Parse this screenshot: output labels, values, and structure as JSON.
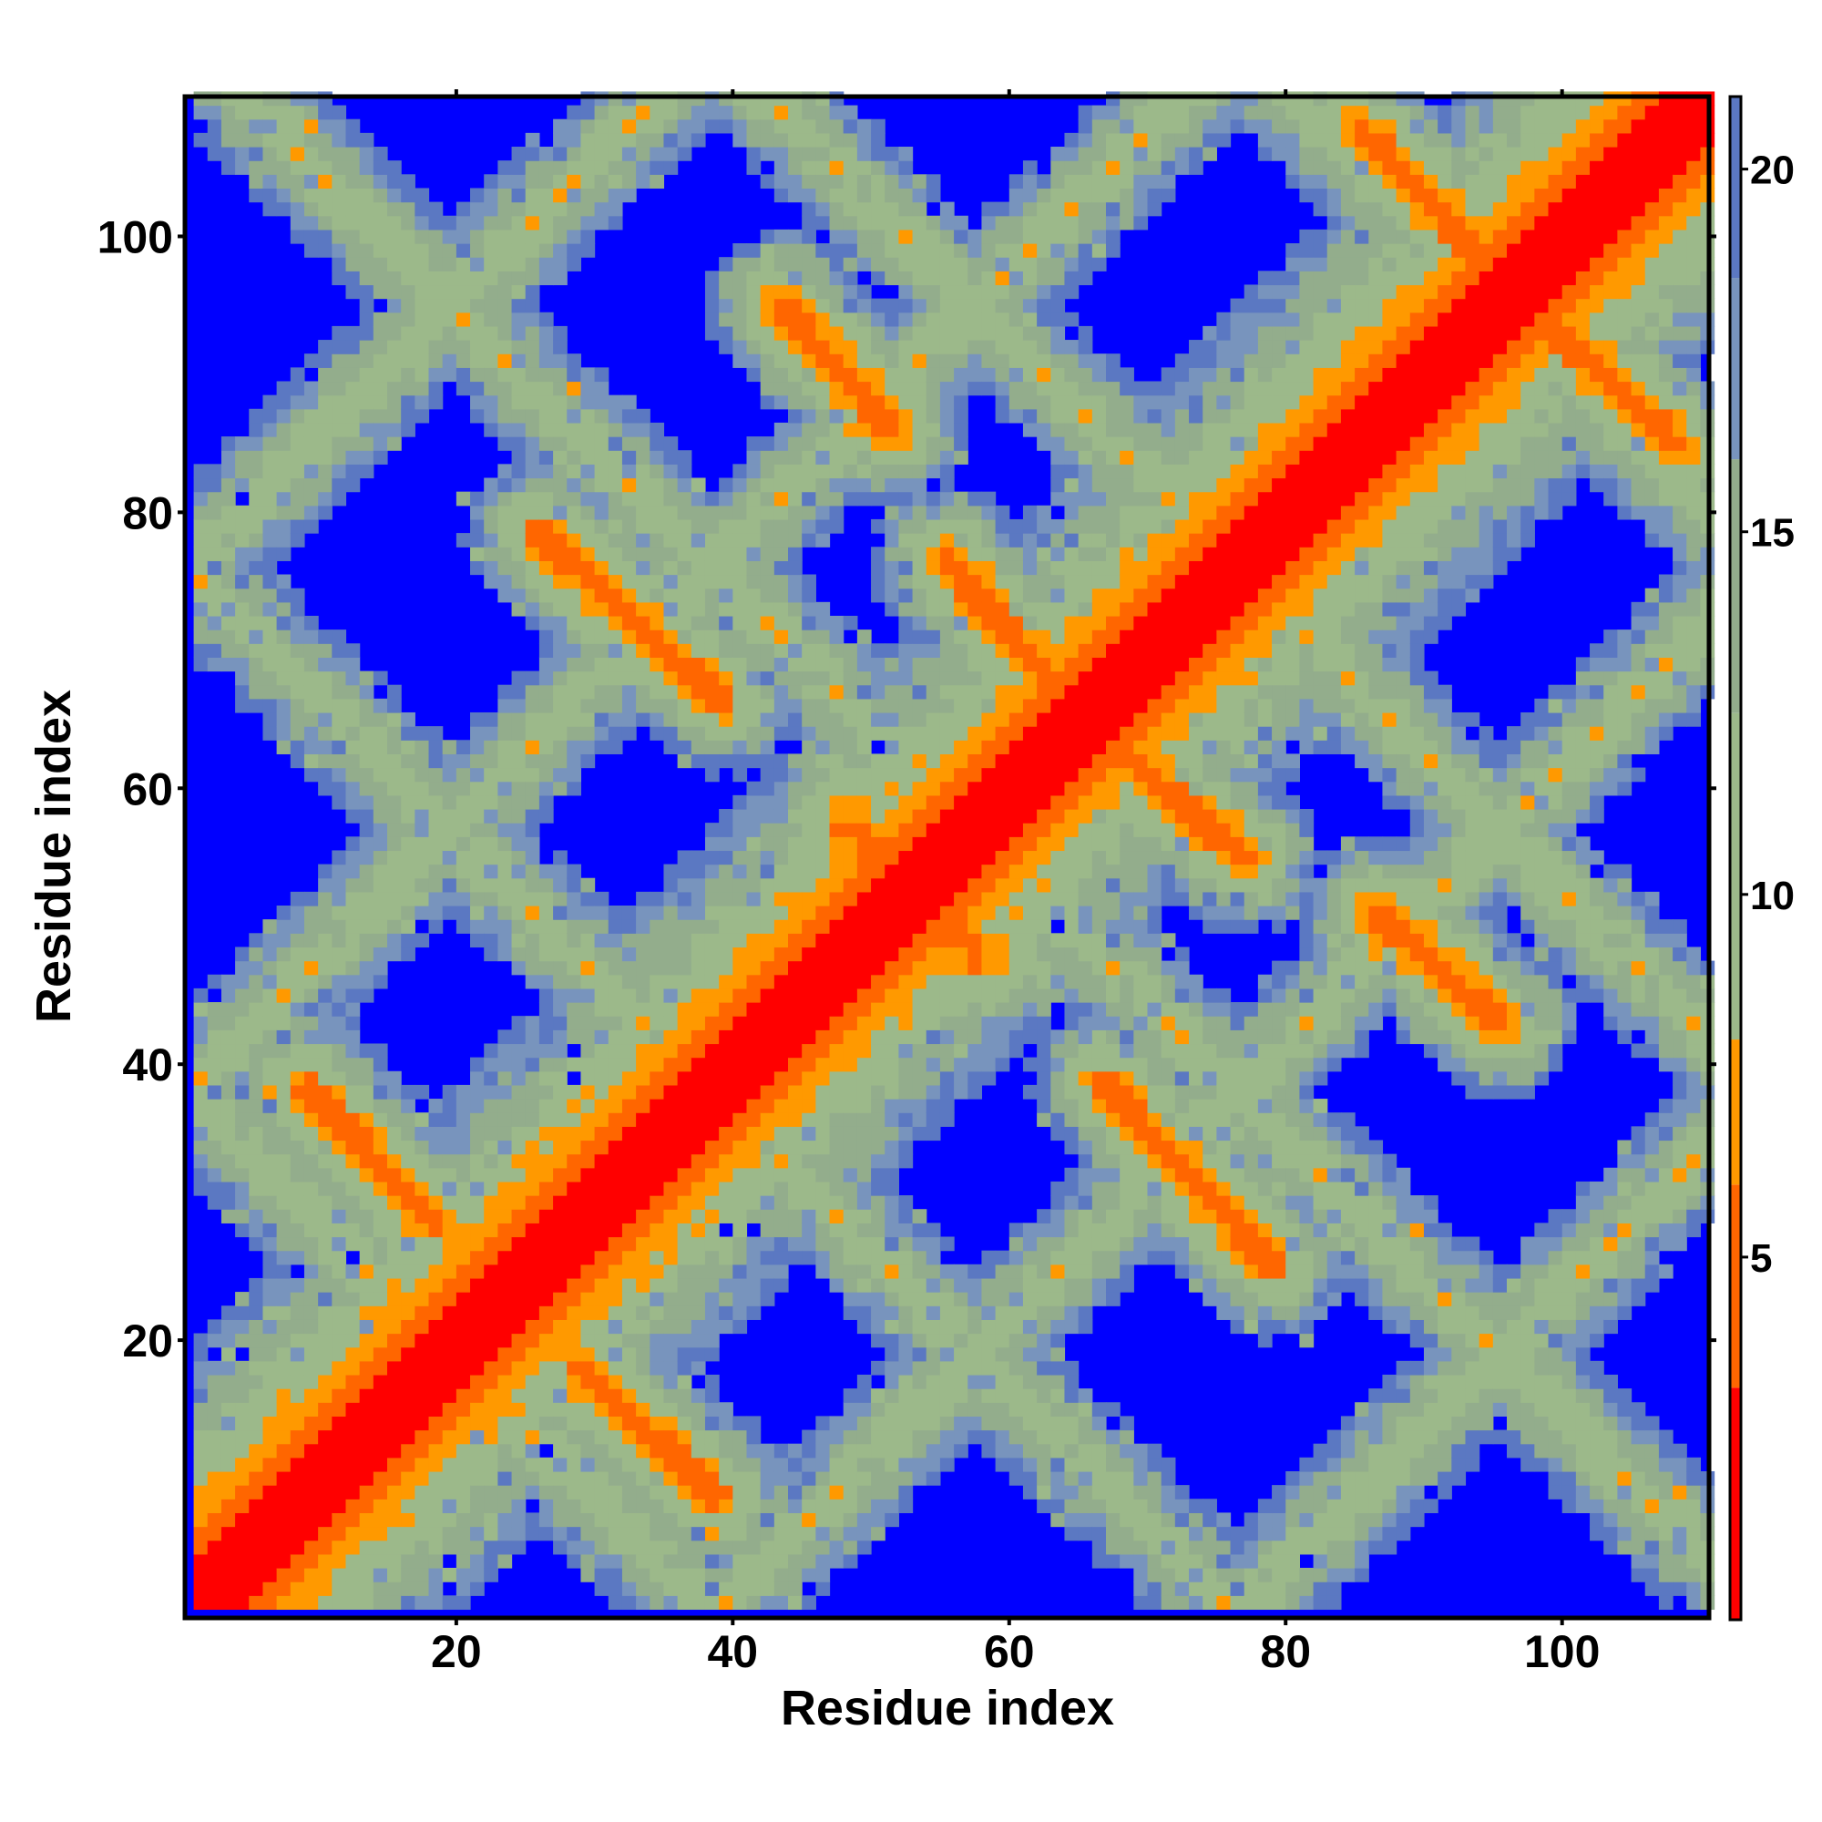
{
  "chart_data": {
    "type": "heatmap",
    "title": "",
    "xlabel": "Residue index",
    "ylabel": "Residue index",
    "n_residues": 110,
    "xlim": [
      1,
      110
    ],
    "ylim": [
      1,
      110
    ],
    "x_ticks": [
      20,
      40,
      60,
      80,
      100
    ],
    "y_ticks": [
      20,
      40,
      60,
      80,
      100
    ],
    "colorbar": {
      "range": [
        0,
        21
      ],
      "ticks": [
        5,
        10,
        15,
        20
      ],
      "colors": {
        "close": "#ff0000",
        "near": "#ff9900",
        "mid_green": "#9cb98a",
        "mid_blue": "#6b8fc4",
        "far": "#0000ff"
      },
      "bins": [
        {
          "from": 0,
          "to": 3.2,
          "color": "#ff0000"
        },
        {
          "from": 3.2,
          "to": 6,
          "color": "#ff6600"
        },
        {
          "from": 6,
          "to": 8,
          "color": "#ff9900"
        },
        {
          "from": 8,
          "to": 12.5,
          "color": "#9cb98a"
        },
        {
          "from": 12.5,
          "to": 16,
          "color": "#93ad8c"
        },
        {
          "from": 16,
          "to": 18.5,
          "color": "#7894bd"
        },
        {
          "from": 18.5,
          "to": 21,
          "color": "#5b78c2"
        },
        {
          "from": 21,
          "to": 999,
          "color": "#0000ff"
        }
      ]
    },
    "structure": {
      "main_diagonal": true,
      "anti_diagonals": [
        {
          "x": [
            9,
            18
          ],
          "y": [
            39,
            29
          ]
        },
        {
          "x": [
            28,
            38
          ],
          "y": [
            18,
            8
          ]
        },
        {
          "x": [
            25,
            38
          ],
          "y": [
            79,
            67
          ]
        },
        {
          "x": [
            43,
            51
          ],
          "y": [
            95,
            86
          ]
        },
        {
          "x": [
            47,
            57
          ],
          "y": [
            60,
            47
          ]
        },
        {
          "x": [
            55,
            64
          ],
          "y": [
            77,
            66
          ]
        },
        {
          "x": [
            66,
            76
          ],
          "y": [
            64,
            55
          ]
        },
        {
          "x": [
            66,
            78
          ],
          "y": [
            39,
            26
          ]
        },
        {
          "x": [
            86,
            93
          ],
          "y": [
            107,
            99
          ]
        },
        {
          "x": [
            86,
            95
          ],
          "y": [
            51,
            43
          ]
        },
        {
          "x": [
            99,
            109
          ],
          "y": [
            93,
            84
          ]
        }
      ]
    }
  }
}
